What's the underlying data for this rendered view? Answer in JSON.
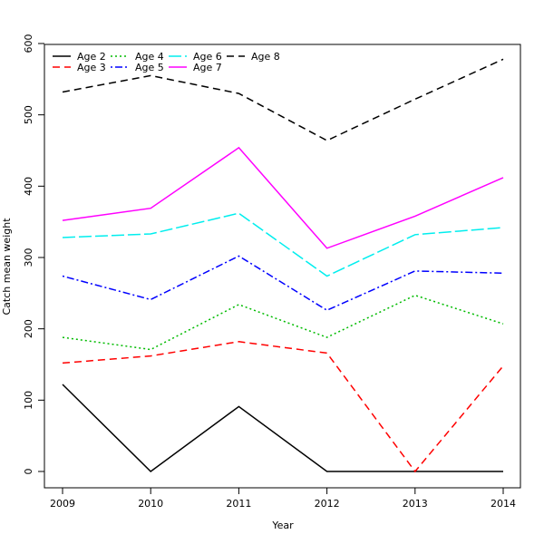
{
  "chart_data": {
    "type": "line",
    "title": "",
    "xlabel": "Year",
    "ylabel": "Catch mean weight",
    "x": [
      2009,
      2010,
      2011,
      2012,
      2013,
      2014
    ],
    "xlim": [
      2009,
      2014
    ],
    "ylim": [
      0,
      600
    ],
    "yticks": [
      0,
      100,
      200,
      300,
      400,
      500,
      600
    ],
    "grid": false,
    "legend_position": "top-left",
    "series": [
      {
        "name": "Age 2",
        "color": "#000000",
        "dash": "solid",
        "values": [
          122,
          0,
          91,
          0,
          0,
          0
        ]
      },
      {
        "name": "Age 3",
        "color": "#ff0000",
        "dash": "dashed",
        "values": [
          152,
          162,
          182,
          166,
          0,
          148
        ]
      },
      {
        "name": "Age 4",
        "color": "#00bb00",
        "dash": "dotted",
        "values": [
          188,
          171,
          234,
          188,
          247,
          207
        ]
      },
      {
        "name": "Age 5",
        "color": "#0000ff",
        "dash": "dotdash",
        "values": [
          274,
          241,
          302,
          226,
          281,
          278
        ]
      },
      {
        "name": "Age 6",
        "color": "#00eeee",
        "dash": "longdash",
        "values": [
          328,
          333,
          362,
          274,
          332,
          342
        ]
      },
      {
        "name": "Age 7",
        "color": "#ff00ff",
        "dash": "solid",
        "values": [
          352,
          369,
          454,
          313,
          358,
          412
        ]
      },
      {
        "name": "Age 8",
        "color": "#000000",
        "dash": "dashed",
        "values": [
          532,
          555,
          530,
          464,
          522,
          578
        ]
      }
    ]
  }
}
